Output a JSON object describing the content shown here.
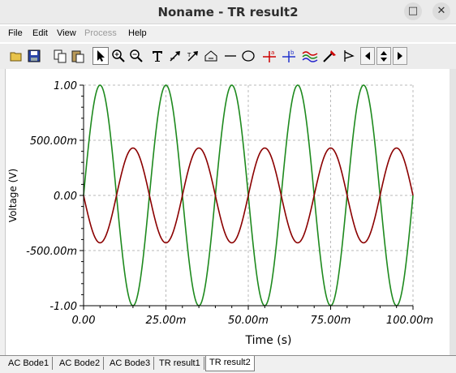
{
  "window": {
    "title": "Noname - TR result2",
    "maximize_icon": "maximize-icon",
    "close_icon": "close-icon"
  },
  "menu": [
    "File",
    "Edit",
    "View",
    "Process",
    "Help"
  ],
  "toolbar": [
    "open-icon",
    "save-icon",
    "copy-icon",
    "paste-icon",
    "pointer-icon",
    "zoom-in-icon",
    "zoom-out-icon",
    "text-icon",
    "arrow-tool-icon",
    "arrow-text-icon",
    "house-text-icon",
    "line-icon",
    "ellipse-icon",
    "cursor-a-icon",
    "cursor-b-icon",
    "waveform-icon",
    "waveform-edit-icon",
    "flag-icon",
    "prev-icon",
    "updown-icon",
    "next-icon"
  ],
  "tabs": [
    "AC Bode1",
    "AC Bode2",
    "AC Bode3",
    "TR result1",
    "TR result2"
  ],
  "active_tab": "TR result2",
  "chart_data": {
    "type": "line",
    "xlabel": "Time (s)",
    "ylabel": "Voltage (V)",
    "xlim": [
      0,
      0.1
    ],
    "ylim": [
      -1,
      1
    ],
    "x_ticks": [
      "0.00",
      "25.00m",
      "50.00m",
      "75.00m",
      "100.00m"
    ],
    "y_ticks": [
      "1.00",
      "500.00m",
      "0.00",
      "-500.00m",
      "-1.00"
    ],
    "grid": true,
    "series": [
      {
        "color": "#1e8a1e",
        "amplitude": 1.0,
        "frequency_hz": 50,
        "phase_deg": 0
      },
      {
        "color": "#8b0000",
        "amplitude": 0.43,
        "frequency_hz": 50,
        "phase_deg": 180
      }
    ]
  }
}
